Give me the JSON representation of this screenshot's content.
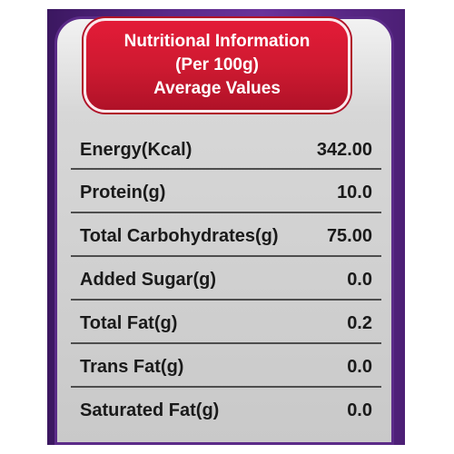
{
  "header": {
    "line1": "Nutritional Information",
    "line2": "(Per 100g)",
    "line3": "Average Values"
  },
  "rows": [
    {
      "label": "Energy(Kcal)",
      "value": "342.00"
    },
    {
      "label": "Protein(g)",
      "value": "10.0"
    },
    {
      "label": "Total Carbohydrates(g)",
      "value": "75.00"
    },
    {
      "label": "Added Sugar(g)",
      "value": "0.0"
    },
    {
      "label": "Total Fat(g)",
      "value": "0.2"
    },
    {
      "label": "Trans Fat(g)",
      "value": "0.0"
    },
    {
      "label": "Saturated Fat(g)",
      "value": "0.0"
    }
  ],
  "colors": {
    "header_red": "#d51a33",
    "panel_grey": "#d4d4d4",
    "border_purple": "#5a2a8a"
  }
}
